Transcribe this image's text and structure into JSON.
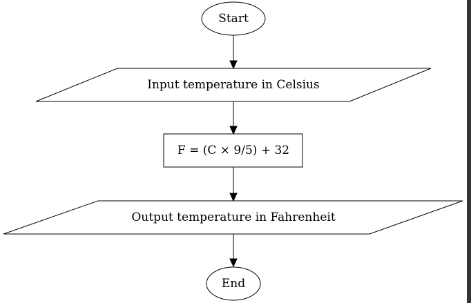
{
  "flowchart": {
    "nodes": {
      "start": {
        "label": "Start",
        "shape": "ellipse"
      },
      "input": {
        "label": "Input temperature in Celsius",
        "shape": "parallelogram"
      },
      "process": {
        "label": "F = (C × 9/5) + 32",
        "shape": "rectangle"
      },
      "output": {
        "label": "Output temperature in Fahrenheit",
        "shape": "parallelogram"
      },
      "end": {
        "label": "End",
        "shape": "ellipse"
      }
    },
    "edges": [
      {
        "from": "start",
        "to": "input"
      },
      {
        "from": "input",
        "to": "process"
      },
      {
        "from": "process",
        "to": "output"
      },
      {
        "from": "output",
        "to": "end"
      }
    ],
    "colors": {
      "stroke": "#000000",
      "fill": "#ffffff",
      "frame": "#333333"
    }
  }
}
